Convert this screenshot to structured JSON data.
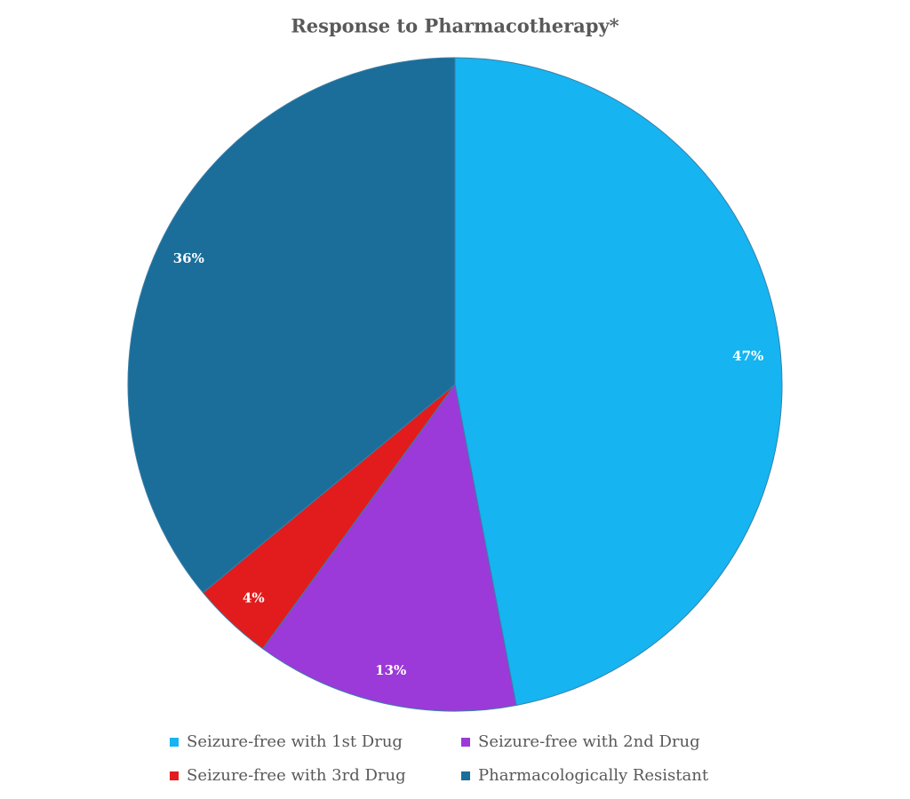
{
  "chart_data": {
    "type": "pie",
    "title": "Response to Pharmacotherapy*",
    "categories": [
      "Seizure-free with 1st Drug",
      "Seizure-free with 2nd Drug",
      "Seizure-free with 3rd Drug",
      "Pharmacologically Resistant"
    ],
    "values": [
      47,
      13,
      4,
      36
    ],
    "value_labels": [
      "47%",
      "13%",
      "4%",
      "36%"
    ],
    "colors": [
      "#16b4f0",
      "#9b3ad8",
      "#e21c1c",
      "#1a6e99"
    ]
  }
}
